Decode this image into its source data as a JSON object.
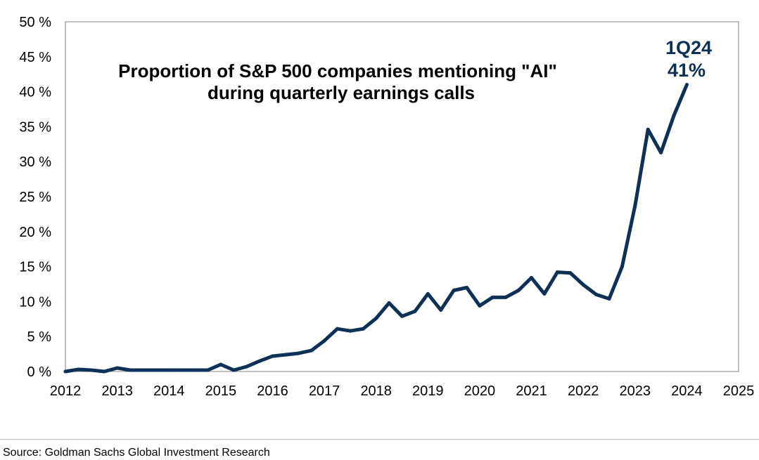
{
  "chart_data": {
    "type": "line",
    "title_lines": [
      "Proportion of S&P 500 companies mentioning \"AI\"",
      "during quarterly earnings calls"
    ],
    "xlabel": "",
    "ylabel": "",
    "xlim": [
      2012,
      2025
    ],
    "ylim": [
      0,
      50
    ],
    "x_ticks": [
      "2012",
      "2013",
      "2014",
      "2015",
      "2016",
      "2017",
      "2018",
      "2019",
      "2020",
      "2021",
      "2022",
      "2023",
      "2024",
      "2025"
    ],
    "y_ticks": [
      "0 %",
      "5 %",
      "10 %",
      "15 %",
      "20 %",
      "25 %",
      "30 %",
      "35 %",
      "40 %",
      "45 %",
      "50 %"
    ],
    "grid": false,
    "line_color": "#0e2f56",
    "series": [
      {
        "x": [
          2012.0,
          2012.25,
          2012.5,
          2012.75,
          2013.0,
          2013.25,
          2013.5,
          2013.75,
          2014.0,
          2014.25,
          2014.5,
          2014.75,
          2015.0,
          2015.25,
          2015.5,
          2015.75,
          2016.0,
          2016.25,
          2016.5,
          2016.75,
          2017.0,
          2017.25,
          2017.5,
          2017.75,
          2018.0,
          2018.25,
          2018.5,
          2018.75,
          2019.0,
          2019.25,
          2019.5,
          2019.75,
          2020.0,
          2020.25,
          2020.5,
          2020.75,
          2021.0,
          2021.25,
          2021.5,
          2021.75,
          2022.0,
          2022.25,
          2022.5,
          2022.75,
          2023.0,
          2023.25,
          2023.5,
          2023.75,
          2024.0
        ],
        "y": [
          0.0,
          0.3,
          0.2,
          0.0,
          0.5,
          0.2,
          0.2,
          0.2,
          0.2,
          0.2,
          0.2,
          0.2,
          1.0,
          0.2,
          0.7,
          1.5,
          2.2,
          2.4,
          2.6,
          3.0,
          4.4,
          6.1,
          5.8,
          6.1,
          7.6,
          9.8,
          7.9,
          8.6,
          11.1,
          8.8,
          11.6,
          12.0,
          9.4,
          10.6,
          10.6,
          11.6,
          13.4,
          11.1,
          14.2,
          14.1,
          12.4,
          11.0,
          10.4,
          15.0,
          23.7,
          34.6,
          31.3,
          36.6,
          41.0
        ]
      }
    ],
    "annotation": {
      "label": "1Q24",
      "value": "41%",
      "color": "#0e2f56"
    }
  },
  "source": "Source: Goldman Sachs Global Investment Research"
}
